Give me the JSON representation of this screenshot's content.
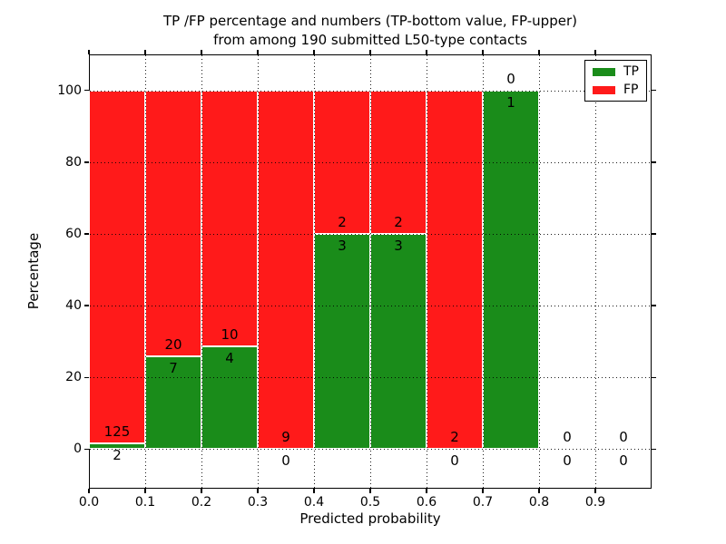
{
  "figure": {
    "title_line1": "TP /FP percentage and numbers (TP-bottom value, FP-upper)",
    "title_line2": "from among 190 submitted L50-type contacts",
    "xlabel": "Predicted probability",
    "ylabel": "Percentage"
  },
  "chart_data": {
    "type": "bar",
    "stacked": true,
    "title": "TP /FP percentage and numbers (TP-bottom value, FP-upper) from among 190 submitted L50-type contacts",
    "xlabel": "Predicted probability",
    "ylabel": "Percentage",
    "total_contacts": 190,
    "xlim": [
      0.0,
      1.0
    ],
    "ylim": [
      -11,
      110
    ],
    "xticks": [
      0.0,
      0.1,
      0.2,
      0.3,
      0.4,
      0.5,
      0.6,
      0.7,
      0.8,
      0.9
    ],
    "xtick_labels": [
      "0.0",
      "0.1",
      "0.2",
      "0.3",
      "0.4",
      "0.5",
      "0.6",
      "0.7",
      "0.8",
      "0.9"
    ],
    "yticks": [
      0,
      20,
      40,
      60,
      80,
      100
    ],
    "ytick_labels": [
      "0",
      "20",
      "40",
      "60",
      "80",
      "100"
    ],
    "grid": "dotted",
    "legend_position": "upper right",
    "series": [
      {
        "name": "TP",
        "color": "#1a8c1a"
      },
      {
        "name": "FP",
        "color": "#ff1a1a"
      }
    ],
    "bar_edge_color": "#ffffff",
    "bins": [
      {
        "x0": 0.0,
        "x1": 0.1,
        "tp": 2,
        "fp": 125,
        "tp_pct": 1.57
      },
      {
        "x0": 0.1,
        "x1": 0.2,
        "tp": 7,
        "fp": 20,
        "tp_pct": 25.93
      },
      {
        "x0": 0.2,
        "x1": 0.3,
        "tp": 4,
        "fp": 10,
        "tp_pct": 28.57
      },
      {
        "x0": 0.3,
        "x1": 0.4,
        "tp": 0,
        "fp": 9,
        "tp_pct": 0
      },
      {
        "x0": 0.4,
        "x1": 0.5,
        "tp": 3,
        "fp": 2,
        "tp_pct": 60
      },
      {
        "x0": 0.5,
        "x1": 0.6,
        "tp": 3,
        "fp": 2,
        "tp_pct": 60
      },
      {
        "x0": 0.6,
        "x1": 0.7,
        "tp": 0,
        "fp": 2,
        "tp_pct": 0
      },
      {
        "x0": 0.7,
        "x1": 0.8,
        "tp": 1,
        "fp": 0,
        "tp_pct": 100
      },
      {
        "x0": 0.8,
        "x1": 0.9,
        "tp": 0,
        "fp": 0,
        "tp_pct": 0
      },
      {
        "x0": 0.9,
        "x1": 1.0,
        "tp": 0,
        "fp": 0,
        "tp_pct": 0
      }
    ]
  }
}
